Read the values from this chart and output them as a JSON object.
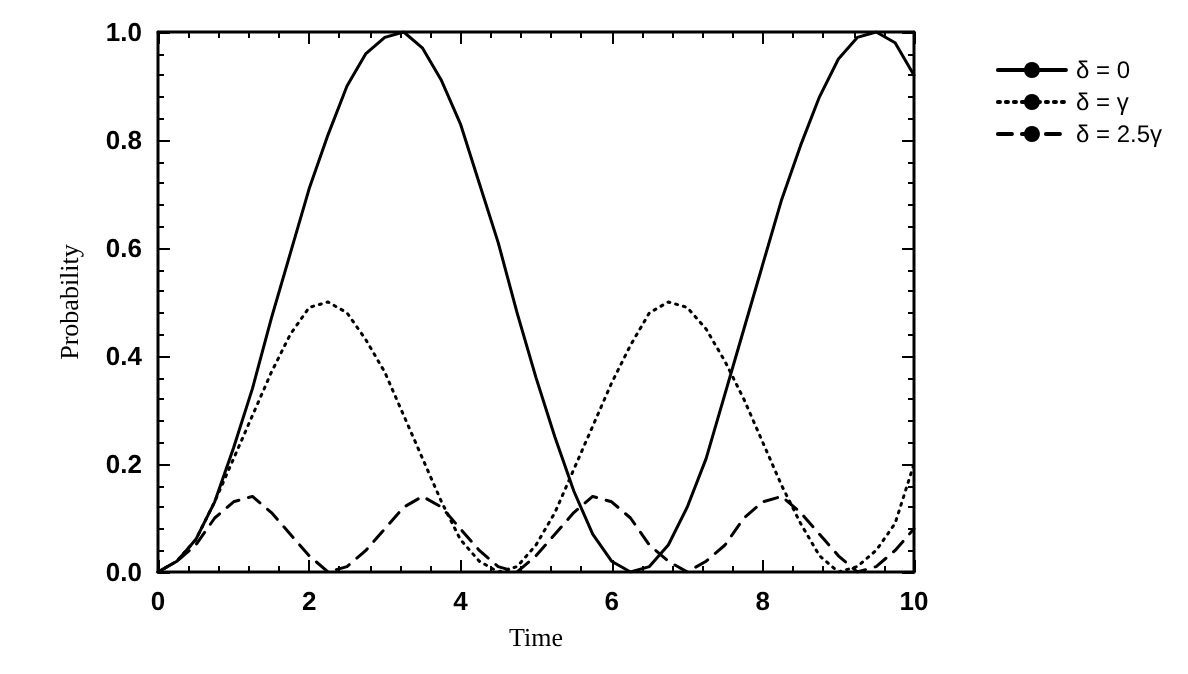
{
  "chart_data": {
    "type": "line",
    "xlabel": "Time",
    "ylabel": "Probability",
    "x": [
      0,
      0.25,
      0.5,
      0.75,
      1,
      1.25,
      1.5,
      1.75,
      2,
      2.25,
      2.5,
      2.75,
      3,
      3.25,
      3.5,
      3.75,
      4,
      4.25,
      4.5,
      4.75,
      5,
      5.25,
      5.5,
      5.75,
      6,
      6.25,
      6.5,
      6.75,
      7,
      7.25,
      7.5,
      7.75,
      8,
      8.25,
      8.5,
      8.75,
      9,
      9.25,
      9.5,
      9.75,
      10
    ],
    "series": [
      {
        "name": "δ = 0",
        "color": "#000000",
        "line_style": "solid",
        "values": [
          0,
          0.02,
          0.06,
          0.13,
          0.23,
          0.34,
          0.47,
          0.59,
          0.71,
          0.81,
          0.9,
          0.96,
          0.99,
          1.0,
          0.97,
          0.91,
          0.83,
          0.72,
          0.61,
          0.48,
          0.36,
          0.25,
          0.15,
          0.07,
          0.02,
          0,
          0.01,
          0.05,
          0.12,
          0.21,
          0.33,
          0.45,
          0.57,
          0.69,
          0.79,
          0.88,
          0.95,
          0.99,
          1.0,
          0.98,
          0.92
        ]
      },
      {
        "name": "δ = γ",
        "color": "#000000",
        "line_style": "dotted",
        "values": [
          0,
          0.02,
          0.06,
          0.13,
          0.21,
          0.29,
          0.37,
          0.44,
          0.49,
          0.5,
          0.48,
          0.43,
          0.37,
          0.29,
          0.21,
          0.13,
          0.06,
          0.02,
          0,
          0.01,
          0.05,
          0.11,
          0.19,
          0.27,
          0.35,
          0.42,
          0.48,
          0.5,
          0.49,
          0.45,
          0.39,
          0.32,
          0.24,
          0.16,
          0.09,
          0.03,
          0,
          0.01,
          0.04,
          0.09,
          0.2
        ]
      },
      {
        "name": "δ = 2.5γ",
        "color": "#000000",
        "line_style": "dashed",
        "values": [
          0,
          0.02,
          0.05,
          0.1,
          0.13,
          0.14,
          0.11,
          0.07,
          0.03,
          0,
          0.01,
          0.04,
          0.08,
          0.12,
          0.14,
          0.12,
          0.08,
          0.04,
          0.01,
          0,
          0.03,
          0.07,
          0.11,
          0.14,
          0.13,
          0.1,
          0.05,
          0.02,
          0,
          0.02,
          0.05,
          0.1,
          0.13,
          0.14,
          0.11,
          0.07,
          0.03,
          0,
          0.01,
          0.04,
          0.08
        ]
      }
    ],
    "xlim": [
      0,
      10
    ],
    "xticks": [
      0,
      2,
      4,
      6,
      8,
      10
    ],
    "ylim": [
      0,
      1
    ],
    "yticks": [
      {
        "value": 0,
        "label": "0.0"
      },
      {
        "value": 0.2,
        "label": "0.2"
      },
      {
        "value": 0.4,
        "label": "0.4"
      },
      {
        "value": 0.6,
        "label": "0.6"
      },
      {
        "value": 0.8,
        "label": "0.8"
      },
      {
        "value": 1,
        "label": "1.0"
      }
    ],
    "grid": false,
    "legend": "top right",
    "marker": "none"
  }
}
